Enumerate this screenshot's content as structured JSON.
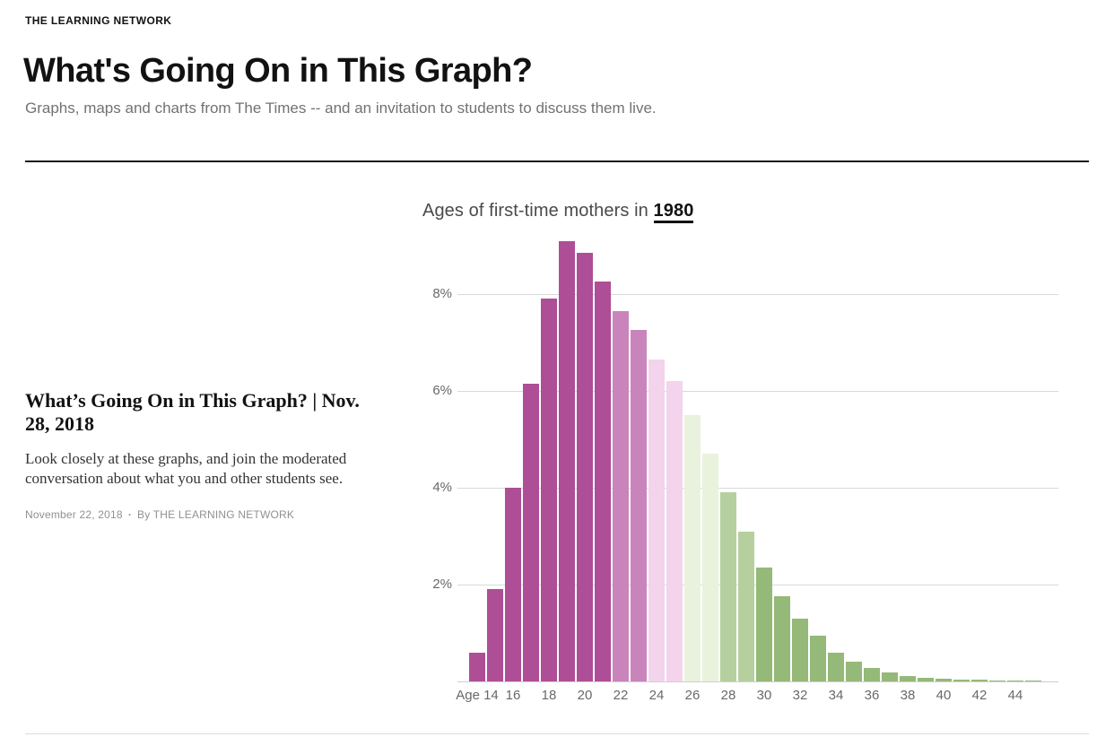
{
  "page": {
    "kicker": "THE LEARNING NETWORK",
    "title": "What's Going On in This Graph?",
    "subtitle": "Graphs, maps and charts from The Times -- and an invitation to students to discuss them live."
  },
  "article": {
    "headline": "What’s Going On in This Graph? | Nov. 28, 2018",
    "summary": "Look closely at these graphs, and join the moderated conversation about what you and other students see.",
    "date": "November 22, 2018",
    "separator": "·",
    "byline": "By THE LEARNING NETWORK"
  },
  "chart": {
    "title_prefix": "Ages of first-time mothers in ",
    "title_year": "1980"
  },
  "chart_data": {
    "type": "bar",
    "title": "Ages of first-time mothers in 1980",
    "xlabel": "Age",
    "ylabel": "",
    "grid": true,
    "legend": "none",
    "ylim": [
      0,
      9.3
    ],
    "x": [
      14,
      15,
      16,
      17,
      18,
      19,
      20,
      21,
      22,
      23,
      24,
      25,
      26,
      27,
      28,
      29,
      30,
      31,
      32,
      33,
      34,
      35,
      36,
      37,
      38,
      39,
      40,
      41,
      42,
      43,
      44,
      45
    ],
    "values": [
      0.6,
      1.9,
      4.0,
      6.15,
      7.9,
      9.1,
      8.85,
      8.25,
      7.65,
      7.25,
      6.65,
      6.2,
      5.5,
      4.7,
      3.9,
      3.1,
      2.35,
      1.75,
      1.3,
      0.95,
      0.6,
      0.4,
      0.27,
      0.18,
      0.12,
      0.07,
      0.05,
      0.04,
      0.03,
      0.02,
      0.015,
      0.01
    ],
    "x_ticks": [
      {
        "age": 14,
        "label": "Age 14"
      },
      {
        "age": 16,
        "label": "16"
      },
      {
        "age": 18,
        "label": "18"
      },
      {
        "age": 20,
        "label": "20"
      },
      {
        "age": 22,
        "label": "22"
      },
      {
        "age": 24,
        "label": "24"
      },
      {
        "age": 26,
        "label": "26"
      },
      {
        "age": 28,
        "label": "28"
      },
      {
        "age": 30,
        "label": "30"
      },
      {
        "age": 32,
        "label": "32"
      },
      {
        "age": 34,
        "label": "34"
      },
      {
        "age": 36,
        "label": "36"
      },
      {
        "age": 38,
        "label": "38"
      },
      {
        "age": 40,
        "label": "40"
      },
      {
        "age": 42,
        "label": "42"
      },
      {
        "age": 44,
        "label": "44"
      }
    ],
    "y_ticks": [
      {
        "value": 2,
        "label": "2%"
      },
      {
        "value": 4,
        "label": "4%"
      },
      {
        "value": 6,
        "label": "6%"
      },
      {
        "value": 8,
        "label": "8%"
      }
    ],
    "bar_color_ranges": [
      {
        "from_age": 14,
        "to_age": 21,
        "color": "#ae4e96"
      },
      {
        "from_age": 22,
        "to_age": 23,
        "color": "#c985bb"
      },
      {
        "from_age": 24,
        "to_age": 25,
        "color": "#f3d4ec"
      },
      {
        "from_age": 26,
        "to_age": 27,
        "color": "#e9f2dd"
      },
      {
        "from_age": 28,
        "to_age": 29,
        "color": "#b5d09e"
      },
      {
        "from_age": 30,
        "to_age": 45,
        "color": "#94b978"
      }
    ]
  }
}
